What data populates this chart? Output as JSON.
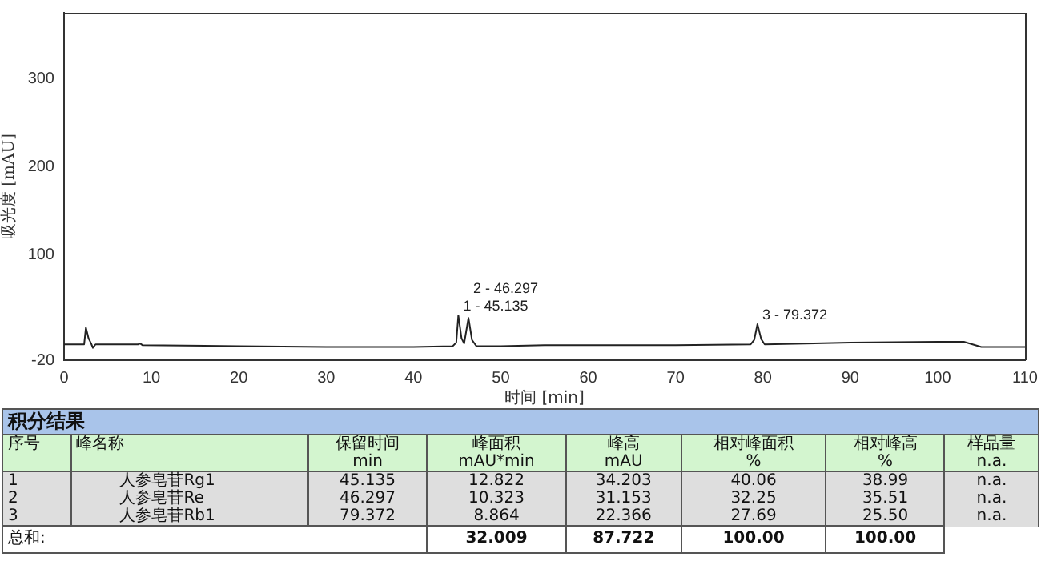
{
  "chart_data": {
    "type": "line",
    "xlabel": "时间 [min]",
    "ylabel": "吸光度 [mAU]",
    "xlim": [
      0,
      110
    ],
    "xticks": [
      0,
      10,
      20,
      30,
      40,
      50,
      60,
      70,
      80,
      90,
      100,
      110
    ],
    "ylim": [
      -20,
      375
    ],
    "yticks": [
      -20,
      100,
      200,
      300
    ],
    "grid": false,
    "legend": false,
    "marker": "none",
    "line_style": "solid",
    "series": [
      {
        "color": "#222222",
        "x": [
          0,
          2.3,
          2.5,
          2.8,
          3.1,
          3.3,
          3.6,
          8.5,
          8.7,
          9,
          20,
          30,
          40,
          44.5,
          44.9,
          45.135,
          45.5,
          45.8,
          46.297,
          46.7,
          47.2,
          50,
          55,
          60,
          70,
          78.6,
          79,
          79.372,
          79.8,
          80.2,
          90,
          100,
          103,
          104,
          105,
          110
        ],
        "values": [
          -2,
          -2,
          17,
          5,
          -1,
          -6,
          -2,
          -2,
          -1,
          -3,
          -4,
          -5,
          -5,
          -4,
          0,
          31,
          5,
          -1,
          28,
          3,
          -4,
          -4,
          -3,
          -3,
          -3,
          -2,
          3,
          21,
          4,
          -2,
          0,
          1,
          1,
          -2,
          -5,
          -5
        ]
      }
    ],
    "annotations": [
      {
        "text": "1 - 45.135",
        "x": 45.135,
        "y": 31
      },
      {
        "text": "2 - 46.297",
        "x": 46.297,
        "y": 28
      },
      {
        "text": "3 - 79.372",
        "x": 79.372,
        "y": 21
      },
      "积分结果",
      "序号",
      "峰名称",
      "保留时间\nmin",
      "峰面积\nmAU*min",
      "峰高\nmAU",
      "相对峰面积\n%",
      "相对峰高\n%",
      "样品量\nn.a.",
      "1",
      "人参皂苷Rg1",
      "45.135",
      "12.822",
      "34.203",
      "40.06",
      "38.99",
      "n.a.",
      "2",
      "人参皂苷Re",
      "46.297",
      "10.323",
      "31.153",
      "32.25",
      "35.51",
      "n.a.",
      "3",
      "人参皂苷Rb1",
      "79.372",
      "8.864",
      "22.366",
      "27.69",
      "25.50",
      "n.a.",
      "总和:",
      "32.009",
      "87.722",
      "100.00",
      "100.00"
    ]
  }
}
